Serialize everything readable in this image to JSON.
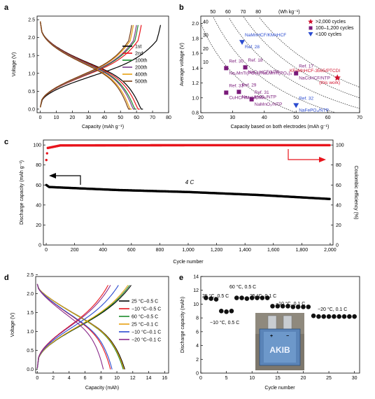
{
  "chart_data": [
    {
      "panel": "a",
      "type": "line",
      "xlabel": "Capacity (mAh g⁻¹)",
      "ylabel": "Voltage (V)",
      "xlim": [
        -2,
        80
      ],
      "ylim": [
        -0.1,
        2.6
      ],
      "xticks": [
        "0",
        "10",
        "20",
        "30",
        "40",
        "50",
        "60",
        "70",
        "80"
      ],
      "yticks": [
        "0.0",
        "0.5",
        "1.0",
        "1.5",
        "2.0",
        "2.5"
      ],
      "series": [
        {
          "name": "1st",
          "color": "#000000",
          "charge_end": 75,
          "discharge_end": 64
        },
        {
          "name": "2nd",
          "color": "#e8141c",
          "charge_end": 63,
          "discharge_end": 62
        },
        {
          "name": "100th",
          "color": "#1b8a2b",
          "charge_end": 61,
          "discharge_end": 60
        },
        {
          "name": "200th",
          "color": "#7a3c8c",
          "charge_end": 60,
          "discharge_end": 59
        },
        {
          "name": "400th",
          "color": "#e8a010",
          "charge_end": 58,
          "discharge_end": 57
        },
        {
          "name": "500th",
          "color": "#7a3e16",
          "charge_end": 57,
          "discharge_end": 56
        }
      ]
    },
    {
      "panel": "b",
      "type": "scatter",
      "xlabel": "Capacity based on both electrodes (mAh g⁻¹)",
      "ylabel": "Average voltage (V)",
      "toplabel": "(Wh kg⁻¹)",
      "xlim": [
        20,
        70
      ],
      "ylim": [
        0.8,
        2.1
      ],
      "xticks": [
        "20",
        "30",
        "40",
        "50",
        "60",
        "70"
      ],
      "yticks": [
        "0.8",
        "1.0",
        "1.2",
        "1.4",
        "1.6",
        "1.8",
        "2.0"
      ],
      "top_ticks": [
        "50",
        "60",
        "70",
        "80"
      ],
      "curve_labels": [
        "40",
        "30",
        "20",
        "10"
      ],
      "legend": [
        {
          "label": ">2,000 cycles",
          "marker": "star",
          "color": "#d0102c"
        },
        {
          "label": "100–1,200 cycles",
          "marker": "square",
          "color": "#7a1a7a"
        },
        {
          "label": "<100 cycles",
          "marker": "triangle",
          "color": "#2a4bd0"
        }
      ],
      "points": [
        {
          "x": 63,
          "y": 1.27,
          "group": ">2,000 cycles",
          "label": "KFeMnHCF-3565/PTCDI",
          "sublabel": "(this work)"
        },
        {
          "x": 33,
          "y": 1.75,
          "group": "<100 cycles",
          "label": "NaMnHCF/KMnHCF",
          "sublabel": "Ref. 28"
        },
        {
          "x": 28,
          "y": 1.4,
          "group": "100–1,200 cycles",
          "label": "Ref. 30",
          "sublabel": "Na₂MnTi(PO₄)₃/Na₂MnTi(PO₄)₃"
        },
        {
          "x": 34,
          "y": 1.41,
          "group": "100–1,200 cycles",
          "label": "Ref. 18",
          "sublabel": "NaCuHCF/NTP"
        },
        {
          "x": 50,
          "y": 1.33,
          "group": "100–1,200 cycles",
          "label": "Ref. 17",
          "sublabel": "NaCoHCF/NTP"
        },
        {
          "x": 28,
          "y": 1.07,
          "group": "100–1,200 cycles",
          "label": "Ref. 33",
          "sublabel": "CuHCF/MnHCMn"
        },
        {
          "x": 32,
          "y": 1.08,
          "group": "100–1,200 cycles",
          "label": "Ref. 29",
          "sublabel": "Na₀.₄₄MnO₂/NTP"
        },
        {
          "x": 36,
          "y": 0.98,
          "group": "100–1,200 cycles",
          "label": "Ref. 31",
          "sublabel": "NaMnO₂/NTP"
        },
        {
          "x": 50,
          "y": 0.9,
          "group": "<100 cycles",
          "label": "Ref. 32",
          "sublabel": "NaFePO₄/NTP"
        }
      ]
    },
    {
      "panel": "c",
      "type": "scatter",
      "xlabel": "Cycle number",
      "ylabel": "Discharge capacity (mAh g⁻¹)",
      "y2label": "Coulombic efficiency (%)",
      "annotation": "4 C",
      "xlim": [
        -20,
        2020
      ],
      "ylim": [
        0,
        105
      ],
      "xticks": [
        "0",
        "200",
        "400",
        "600",
        "800",
        "1,000",
        "1,200",
        "1,400",
        "1,600",
        "1,800",
        "2,000"
      ],
      "yticks": [
        "0",
        "20",
        "40",
        "60",
        "80",
        "100"
      ],
      "y2ticks": [
        "0",
        "20",
        "40",
        "60",
        "80",
        "100"
      ],
      "series": [
        {
          "name": "Discharge capacity",
          "color": "#000000",
          "x": [
            1,
            20,
            100,
            500,
            1000,
            1500,
            2000
          ],
          "y": [
            60,
            58,
            57.5,
            55,
            53,
            50,
            46
          ]
        },
        {
          "name": "Coulombic efficiency",
          "color": "#e8141c",
          "x": [
            1,
            10,
            100,
            1000,
            2000
          ],
          "y": [
            85,
            97,
            99.6,
            99.8,
            99.8
          ]
        }
      ]
    },
    {
      "panel": "d",
      "type": "line",
      "xlabel": "Capacity (mAh)",
      "ylabel": "Voltage (V)",
      "xlim": [
        -0.2,
        16.5
      ],
      "ylim": [
        -0.1,
        2.45
      ],
      "xticks": [
        "0",
        "2",
        "4",
        "6",
        "8",
        "10",
        "12",
        "14",
        "16"
      ],
      "yticks": [
        "0.0",
        "0.5",
        "1.0",
        "1.5",
        "2.0",
        "2.5"
      ],
      "series": [
        {
          "name": "25 °C–0.5 C",
          "color": "#000000",
          "charge_end": 11.8,
          "discharge_end": 11.0
        },
        {
          "name": "−10 °C–0.5 C",
          "color": "#e8141c",
          "charge_end": 8.9,
          "discharge_end": 9.2
        },
        {
          "name": "60 °C–0.5 C",
          "color": "#1b8a2b",
          "charge_end": 11.6,
          "discharge_end": 10.8
        },
        {
          "name": "25 °C–0.1 C",
          "color": "#e8a010",
          "charge_end": 11.4,
          "discharge_end": 10.9
        },
        {
          "name": "−10 °C–0.1 C",
          "color": "#2a4bd0",
          "charge_end": 10.2,
          "discharge_end": 9.4
        },
        {
          "name": "−20 °C–0.1 C",
          "color": "#8a2a8a",
          "charge_end": 9.2,
          "discharge_end": 8.3
        }
      ]
    },
    {
      "panel": "e",
      "type": "scatter",
      "xlabel": "Cycle number",
      "ylabel": "Discharge capacity (mAh)",
      "xlim": [
        0,
        31
      ],
      "ylim": [
        0,
        14
      ],
      "xticks": [
        "0",
        "5",
        "10",
        "15",
        "20",
        "25",
        "30"
      ],
      "yticks": [
        "0",
        "2",
        "4",
        "6",
        "8",
        "10",
        "12",
        "14"
      ],
      "x": [
        1,
        2,
        3,
        4,
        5,
        6,
        7,
        8,
        9,
        10,
        11,
        12,
        13,
        14,
        15,
        16,
        17,
        18,
        19,
        20,
        21,
        22,
        23,
        24,
        25,
        26,
        27,
        28,
        29,
        30
      ],
      "y": [
        10.9,
        10.8,
        10.7,
        9.0,
        8.9,
        9.0,
        10.9,
        10.9,
        10.8,
        10.9,
        10.9,
        10.9,
        10.9,
        9.7,
        9.7,
        9.7,
        9.7,
        9.6,
        9.6,
        9.6,
        9.6,
        8.3,
        8.2,
        8.2,
        8.2,
        8.2,
        8.2,
        8.2,
        8.2,
        8.2
      ],
      "annotations": [
        "25 °C, 0.5 C",
        "60 °C, 0.5 C",
        "−10 °C, 0.5 C",
        "25 °C, 0.1 C",
        "−10 °C, 0.1 C",
        "−20 °C, 0.1 C"
      ],
      "inset_text": "AKIB"
    }
  ]
}
